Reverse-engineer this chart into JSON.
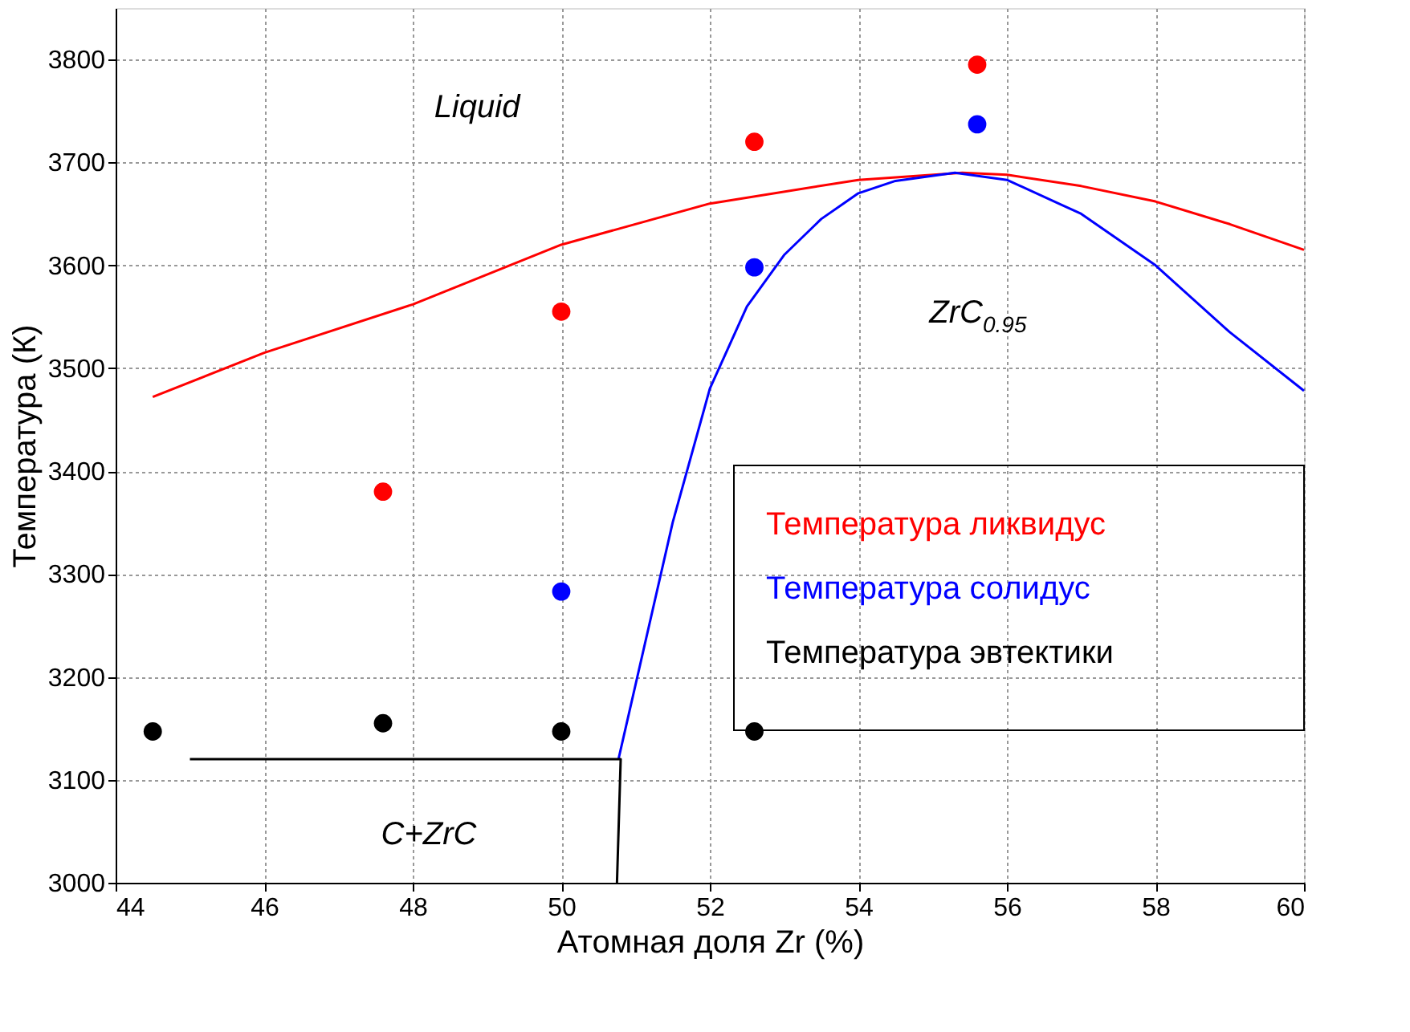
{
  "chart_data": {
    "type": "scatter",
    "xlabel": "Атомная доля Zr (%)",
    "ylabel": "Температура (К)",
    "xlim": [
      44,
      60
    ],
    "xticks": [
      44,
      46,
      48,
      50,
      52,
      54,
      56,
      58,
      60
    ],
    "ylim": [
      3000,
      3850
    ],
    "yticks": [
      3000,
      3100,
      3200,
      3300,
      3400,
      3500,
      3600,
      3700,
      3800
    ],
    "grid": true,
    "legend": "right",
    "marker": "circle",
    "series": [
      {
        "type": "line",
        "marker": "none",
        "color": "#ff0000",
        "x": [
          44.5,
          46,
          48,
          50,
          52,
          54,
          55.4,
          56,
          57,
          58,
          59,
          60
        ],
        "values": [
          3472,
          3515,
          3562,
          3620,
          3660,
          3683,
          3690,
          3688,
          3677,
          3662,
          3640,
          3615
        ]
      },
      {
        "type": "line",
        "marker": "none",
        "color": "#0000ff",
        "x": [
          50.77,
          51.5,
          52,
          52.5,
          53,
          53.5,
          54,
          54.5,
          55.3,
          56,
          57,
          58,
          59,
          60
        ],
        "values": [
          3120,
          3350,
          3480,
          3560,
          3610,
          3645,
          3670,
          3682,
          3690,
          3683,
          3650,
          3600,
          3535,
          3478
        ]
      },
      {
        "type": "line",
        "marker": "none",
        "color": "#000000",
        "x": [
          45,
          50.8,
          50.75
        ],
        "values": [
          3120,
          3120,
          3000
        ]
      },
      {
        "name": "Температура ликвидус",
        "color": "#ff0000",
        "x": [
          47.6,
          50,
          52.6,
          55.6
        ],
        "values": [
          3380,
          3555,
          3720,
          3795
        ]
      },
      {
        "name": "Температура солидус",
        "color": "#0000ff",
        "x": [
          50,
          52.6,
          55.6
        ],
        "values": [
          3283,
          3598,
          3737
        ]
      },
      {
        "name": "Температура эвтектики",
        "color": "#000000",
        "x": [
          44.5,
          47.6,
          50,
          52.6
        ],
        "values": [
          3147,
          3155,
          3147,
          3147
        ]
      }
    ],
    "annotations": [
      "Liquid",
      "ZrC$_{0.95}$",
      "C+ZrC"
    ]
  }
}
